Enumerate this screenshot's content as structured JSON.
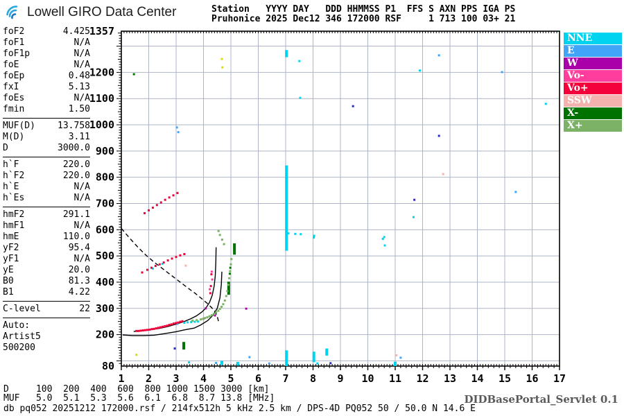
{
  "header": {
    "logo_text": "Lowell GIRO Data Center",
    "station_line1": "Station   YYYY DAY   DDD HHMMSS P1  FFS S AXN PPS IGA PS",
    "station_line2": "Pruhonice 2025 Dec12 346 172000 RSF     1 713 100 03+ 21"
  },
  "params": {
    "groups": [
      [
        {
          "label": "foF2",
          "value": "4.425"
        },
        {
          "label": "foF1",
          "value": "N/A"
        },
        {
          "label": "foF1p",
          "value": "N/A"
        },
        {
          "label": "foE",
          "value": "N/A"
        },
        {
          "label": "foEp",
          "value": "0.48"
        },
        {
          "label": "fxI",
          "value": "5.13"
        },
        {
          "label": "foEs",
          "value": "N/A"
        },
        {
          "label": "fmin",
          "value": "1.50"
        }
      ],
      [
        {
          "label": "MUF(D)",
          "value": "13.758"
        },
        {
          "label": "M(D)",
          "value": "3.11"
        },
        {
          "label": "D",
          "value": "3000.0"
        }
      ],
      [
        {
          "label": "h`F",
          "value": "220.0"
        },
        {
          "label": "h`F2",
          "value": "220.0"
        },
        {
          "label": "h`E",
          "value": "N/A"
        },
        {
          "label": "h`Es",
          "value": "N/A"
        }
      ],
      [
        {
          "label": "hmF2",
          "value": "291.1"
        },
        {
          "label": "hmF1",
          "value": "N/A"
        },
        {
          "label": "hmE",
          "value": "110.0"
        },
        {
          "label": "yF2",
          "value": "95.4"
        },
        {
          "label": "yF1",
          "value": "N/A"
        },
        {
          "label": "yE",
          "value": "20.0"
        },
        {
          "label": "B0",
          "value": "81.3"
        },
        {
          "label": "B1",
          "value": "4.22"
        }
      ],
      [
        {
          "label": "C-level",
          "value": "22"
        }
      ]
    ],
    "auto_block": [
      "Auto:",
      "Artist5",
      "500200"
    ]
  },
  "legend": [
    {
      "label": "NNE",
      "color": "#00D3EE"
    },
    {
      "label": "E",
      "color": "#41A4F6"
    },
    {
      "label": "W",
      "color": "#AA00AA"
    },
    {
      "label": "Vo-",
      "color": "#FF3D9C"
    },
    {
      "label": "Vo+",
      "color": "#F4003A"
    },
    {
      "label": "SSW",
      "color": "#F4B2AE"
    },
    {
      "label": "X-",
      "color": "#007200"
    },
    {
      "label": "X+",
      "color": "#7CB266"
    }
  ],
  "chart_data": {
    "type": "scatter",
    "title": "Pruhonice ionogram 2025 Dec12 346 172000",
    "grid": true,
    "x_axis": {
      "min": 1,
      "max": 17,
      "unit": "MHz",
      "ticks": [
        1,
        2,
        3,
        4,
        5,
        6,
        7,
        8,
        9,
        10,
        11,
        12,
        13,
        14,
        15,
        16,
        17
      ]
    },
    "y_axis": {
      "min": 80,
      "max": 1357,
      "unit": "km",
      "grid_step": 100,
      "labeled_ticks": [
        80,
        200,
        300,
        400,
        500,
        600,
        700,
        800,
        900,
        1000,
        1100,
        1200,
        1357
      ]
    },
    "curves": [
      {
        "name": "o-trace-model",
        "style": "solid",
        "points": [
          [
            1.45,
            212
          ],
          [
            1.8,
            215
          ],
          [
            2.1,
            219
          ],
          [
            2.4,
            224
          ],
          [
            2.7,
            231
          ],
          [
            3.0,
            240
          ],
          [
            3.3,
            250
          ],
          [
            3.55,
            261
          ],
          [
            3.75,
            272
          ],
          [
            3.95,
            287
          ],
          [
            4.1,
            303
          ],
          [
            4.22,
            323
          ],
          [
            4.32,
            350
          ],
          [
            4.39,
            385
          ],
          [
            4.43,
            425
          ],
          [
            4.45,
            475
          ],
          [
            4.46,
            533
          ]
        ]
      },
      {
        "name": "secondary-model",
        "style": "solid",
        "points": [
          [
            1.05,
            199
          ],
          [
            1.4,
            196
          ],
          [
            1.8,
            196
          ],
          [
            2.2,
            198
          ],
          [
            2.6,
            204
          ],
          [
            3.0,
            211
          ],
          [
            3.3,
            218
          ],
          [
            3.66,
            225
          ],
          [
            3.9,
            237
          ],
          [
            4.16,
            254
          ],
          [
            4.35,
            274
          ],
          [
            4.5,
            300
          ],
          [
            4.6,
            340
          ],
          [
            4.65,
            390
          ],
          [
            4.67,
            440
          ]
        ]
      },
      {
        "name": "transmission-curve",
        "style": "dashed",
        "points": [
          [
            1.0,
            605
          ],
          [
            1.3,
            568
          ],
          [
            1.6,
            534
          ],
          [
            1.9,
            503
          ],
          [
            2.2,
            476
          ],
          [
            2.5,
            452
          ],
          [
            2.8,
            428
          ],
          [
            3.1,
            404
          ],
          [
            3.4,
            380
          ],
          [
            3.7,
            357
          ],
          [
            3.95,
            336
          ],
          [
            4.15,
            318
          ],
          [
            4.3,
            303
          ],
          [
            4.4,
            290
          ],
          [
            4.47,
            277
          ],
          [
            4.52,
            263
          ],
          [
            4.55,
            250
          ]
        ]
      }
    ],
    "series": [
      {
        "name": "NNE",
        "color": "#00D3EE",
        "points": [
          [
            3.3,
            245
          ],
          [
            3.42,
            247
          ],
          [
            3.55,
            248
          ],
          [
            3.68,
            249
          ],
          [
            3.8,
            250
          ],
          [
            2.15,
            452
          ],
          [
            2.5,
            470
          ],
          [
            7.1,
            586
          ],
          [
            7.35,
            584
          ],
          [
            7.55,
            583
          ],
          [
            8.04,
            577
          ],
          [
            8.03,
            570
          ],
          [
            10.55,
            565
          ],
          [
            10.6,
            572
          ],
          [
            10.62,
            540
          ],
          [
            11.67,
            648
          ],
          [
            11.9,
            1207
          ],
          [
            16.5,
            1080
          ],
          [
            7.5,
            1243
          ],
          [
            7.53,
            1103
          ],
          [
            3.47,
            94
          ],
          [
            8.16,
            90
          ]
        ],
        "bars": [
          [
            7.03,
            520,
            845
          ],
          [
            7.03,
            1258,
            1285
          ],
          [
            7.03,
            80,
            140
          ],
          [
            8.03,
            95,
            135
          ],
          [
            8.5,
            120,
            147
          ],
          [
            11.0,
            80,
            97
          ],
          [
            5.25,
            82,
            96
          ],
          [
            4.67,
            84,
            100
          ]
        ]
      },
      {
        "name": "E",
        "color": "#41A4F6",
        "points": [
          [
            3.03,
            990
          ],
          [
            3.08,
            972
          ],
          [
            3.05,
            241
          ],
          [
            12.6,
            1265
          ],
          [
            14.9,
            1201
          ],
          [
            15.4,
            744
          ],
          [
            11.2,
            112
          ],
          [
            6.4,
            90
          ],
          [
            4.46,
            92
          ],
          [
            5.68,
            114
          ]
        ]
      },
      {
        "name": "W",
        "color": "#AA00AA",
        "points": [
          [
            3.99,
            260
          ],
          [
            4.42,
            273
          ],
          [
            4.08,
            300
          ],
          [
            5.56,
            299
          ]
        ]
      },
      {
        "name": "Vo-",
        "color": "#FF3D9C",
        "points": [
          [
            4.23,
            373
          ],
          [
            4.32,
            410
          ],
          [
            4.3,
            440
          ]
        ]
      },
      {
        "name": "Vo+",
        "color": "#F4003A",
        "points": [
          [
            1.55,
            214
          ],
          [
            1.63,
            214
          ],
          [
            1.71,
            215
          ],
          [
            1.79,
            216
          ],
          [
            1.87,
            217
          ],
          [
            1.95,
            218
          ],
          [
            2.03,
            219
          ],
          [
            2.11,
            221
          ],
          [
            2.19,
            222
          ],
          [
            2.27,
            224
          ],
          [
            2.35,
            226
          ],
          [
            2.43,
            228
          ],
          [
            2.51,
            230
          ],
          [
            2.59,
            232
          ],
          [
            2.67,
            234
          ],
          [
            2.75,
            237
          ],
          [
            2.83,
            239
          ],
          [
            2.91,
            242
          ],
          [
            2.99,
            244
          ],
          [
            3.07,
            246
          ],
          [
            3.15,
            249
          ],
          [
            3.23,
            251
          ],
          [
            4.25,
            358
          ],
          [
            4.27,
            385
          ],
          [
            4.29,
            430
          ],
          [
            1.76,
            437
          ],
          [
            1.95,
            447
          ],
          [
            2.1,
            455
          ],
          [
            2.25,
            462
          ],
          [
            2.4,
            468
          ],
          [
            2.55,
            475
          ],
          [
            2.7,
            483
          ],
          [
            2.85,
            490
          ],
          [
            3.0,
            496
          ],
          [
            3.15,
            502
          ],
          [
            3.3,
            507
          ],
          [
            1.85,
            663
          ],
          [
            2.0,
            674
          ],
          [
            2.15,
            684
          ],
          [
            2.3,
            694
          ],
          [
            2.45,
            704
          ],
          [
            2.6,
            714
          ],
          [
            2.75,
            723
          ],
          [
            2.9,
            731
          ],
          [
            3.05,
            740
          ]
        ]
      },
      {
        "name": "SSW",
        "color": "#F4B2AE",
        "points": [
          [
            12.75,
            812
          ],
          [
            11.04,
            121
          ],
          [
            3.35,
            463
          ]
        ]
      },
      {
        "name": "X-",
        "color": "#007200",
        "points": [
          [
            1.46,
            1193
          ],
          [
            4.96,
            432
          ],
          [
            4.98,
            455
          ]
        ],
        "bars": [
          [
            3.28,
            143,
            172
          ],
          [
            4.92,
            352,
            402
          ],
          [
            5.13,
            505,
            548
          ]
        ]
      },
      {
        "name": "X+",
        "color": "#7CB266",
        "points": [
          [
            3.6,
            253
          ],
          [
            3.75,
            255
          ],
          [
            3.9,
            258
          ],
          [
            3.98,
            260
          ],
          [
            4.06,
            263
          ],
          [
            4.14,
            266
          ],
          [
            4.22,
            270
          ],
          [
            4.3,
            274
          ],
          [
            4.38,
            279
          ],
          [
            4.46,
            285
          ],
          [
            4.54,
            291
          ],
          [
            4.6,
            298
          ],
          [
            4.66,
            306
          ],
          [
            4.72,
            316
          ],
          [
            4.78,
            330
          ],
          [
            4.83,
            347
          ],
          [
            4.87,
            366
          ],
          [
            4.91,
            390
          ],
          [
            4.94,
            415
          ],
          [
            4.97,
            442
          ],
          [
            5.0,
            468
          ],
          [
            5.02,
            488
          ],
          [
            4.55,
            595
          ],
          [
            4.6,
            580
          ],
          [
            4.68,
            562
          ],
          [
            4.75,
            545
          ]
        ]
      },
      {
        "name": "unclassified-dark",
        "color": "#2A2ABB",
        "points": [
          [
            9.46,
            1071
          ],
          [
            12.6,
            958
          ],
          [
            11.7,
            714
          ],
          [
            8.64,
            91
          ],
          [
            2.95,
            147
          ]
        ]
      },
      {
        "name": "unclassified-yellow",
        "color": "#DCDC00",
        "points": [
          [
            4.67,
            1251
          ],
          [
            4.69,
            1219
          ],
          [
            1.55,
            123
          ]
        ]
      }
    ]
  },
  "footer": {
    "d_row": "D     100  200  400  600  800 1000 1500 3000 [km]",
    "muf_row": "MUF   5.0  5.1  5.3  5.6  6.1  6.8  8.7 13.8 [MHz]",
    "status": "db pq052 20251212 172000.rsf / 214fx512h 5 kHz 2.5 km / DPS-4D PQ052 50 / 50.0 N 14.6 E",
    "servlet": "DIDBasePortal_Servlet 0.1"
  }
}
